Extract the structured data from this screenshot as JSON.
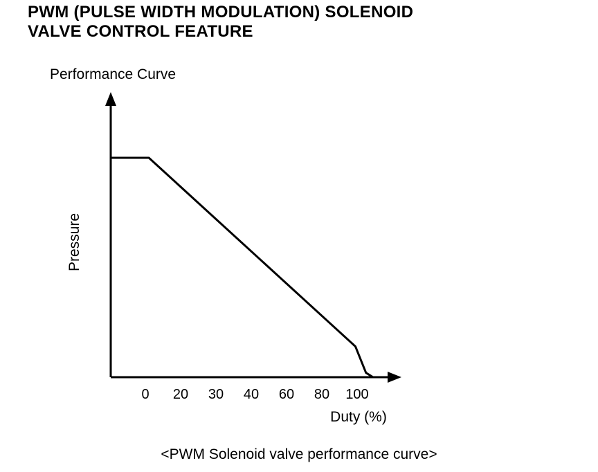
{
  "header": {
    "title_line1": "PWM (PULSE WIDTH MODULATION) SOLENOID",
    "title_line2": "VALVE CONTROL FEATURE"
  },
  "chart_data": {
    "type": "line",
    "title": "Performance Curve",
    "xlabel": "Duty (%)",
    "ylabel": "Pressure",
    "x_ticks": [
      "0",
      "20",
      "30",
      "40",
      "60",
      "80",
      "100"
    ],
    "x_numeric_ticks": [
      0,
      20,
      30,
      40,
      60,
      80,
      100
    ],
    "grid": false,
    "legend": "none",
    "y_axis_unlabeled": true,
    "series": [
      {
        "x": [
          -20,
          2,
          99,
          105,
          109
        ],
        "y": [
          1.0,
          1.0,
          0.14,
          0.02,
          0
        ]
      }
    ]
  },
  "caption": "<PWM Solenoid valve performance curve>",
  "colors": {
    "ink": "#000000",
    "background": "#ffffff"
  }
}
